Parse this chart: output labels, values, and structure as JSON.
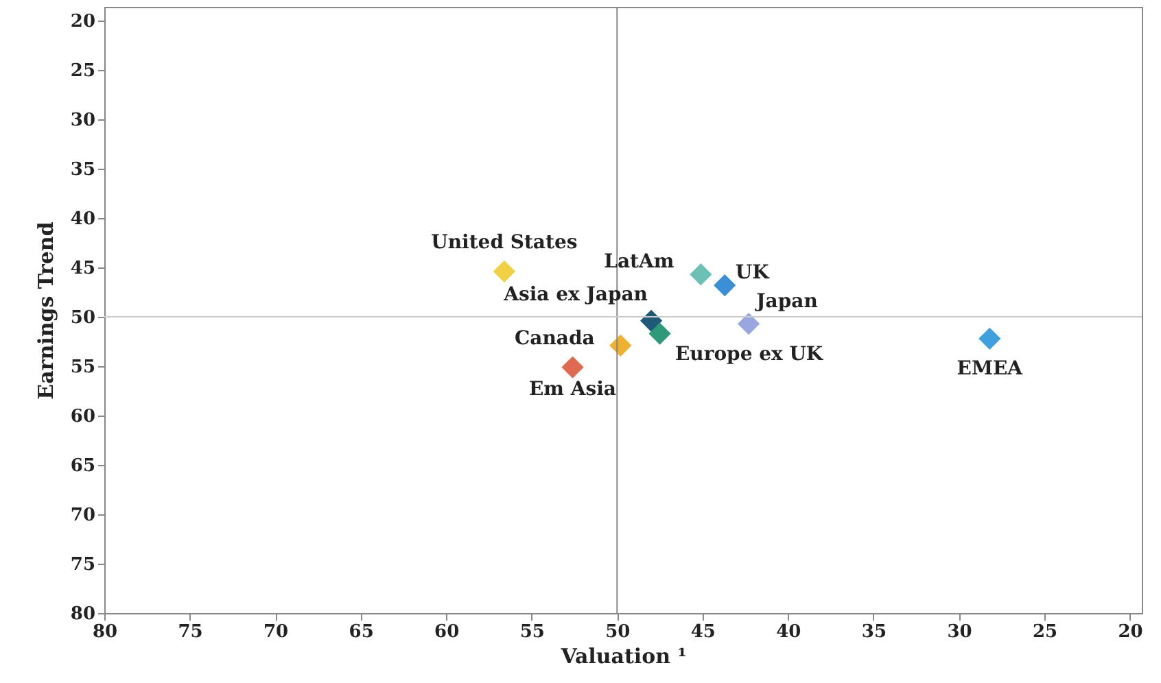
{
  "chart_data": {
    "type": "scatter",
    "xlabel": "Valuation ¹",
    "ylabel": "Earnings Trend",
    "xlim": [
      80,
      19.3
    ],
    "xticks": [
      80,
      75,
      70,
      65,
      60,
      55,
      50,
      45,
      40,
      35,
      30,
      25,
      20
    ],
    "ylim": [
      80,
      18.6
    ],
    "yticks": [
      20,
      25,
      30,
      35,
      40,
      45,
      50,
      55,
      60,
      65,
      70,
      75,
      80
    ],
    "grid": false,
    "legend": false,
    "marker": "diamond",
    "ref_lines": [
      {
        "axis": "x",
        "value": 50,
        "color": "#888888"
      },
      {
        "axis": "y",
        "value": 50,
        "color": "#cccccc"
      }
    ],
    "series": [
      {
        "name": "United States",
        "color": "#f2d043",
        "x": [
          56.6
        ],
        "values": [
          45.4
        ]
      },
      {
        "name": "LatAm",
        "color": "#6cc0b4",
        "x": [
          45.1
        ],
        "values": [
          45.7
        ]
      },
      {
        "name": "UK",
        "color": "#3a8fd6",
        "x": [
          43.7
        ],
        "values": [
          46.8
        ]
      },
      {
        "name": "Japan",
        "color": "#9aa6e0",
        "x": [
          42.3
        ],
        "values": [
          50.7
        ]
      },
      {
        "name": "Asia ex Japan",
        "color": "#1f5a78",
        "x": [
          48
        ],
        "values": [
          50.4
        ]
      },
      {
        "name": "Europe ex UK",
        "color": "#2f9a7a",
        "x": [
          47.5
        ],
        "values": [
          51.7
        ]
      },
      {
        "name": "Canada",
        "color": "#f0b030",
        "x": [
          49.8
        ],
        "values": [
          52.9
        ]
      },
      {
        "name": "Em Asia",
        "color": "#e06a50",
        "x": [
          52.6
        ],
        "values": [
          55.1
        ]
      },
      {
        "name": "EMEA",
        "color": "#3ea0dc",
        "x": [
          28.2
        ],
        "values": [
          52.2
        ]
      }
    ]
  }
}
